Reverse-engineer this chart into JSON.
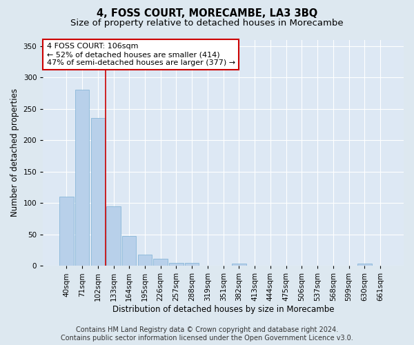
{
  "title": "4, FOSS COURT, MORECAMBE, LA3 3BQ",
  "subtitle": "Size of property relative to detached houses in Morecambe",
  "xlabel": "Distribution of detached houses by size in Morecambe",
  "ylabel": "Number of detached properties",
  "categories": [
    "40sqm",
    "71sqm",
    "102sqm",
    "133sqm",
    "164sqm",
    "195sqm",
    "226sqm",
    "257sqm",
    "288sqm",
    "319sqm",
    "351sqm",
    "382sqm",
    "413sqm",
    "444sqm",
    "475sqm",
    "506sqm",
    "537sqm",
    "568sqm",
    "599sqm",
    "630sqm",
    "661sqm"
  ],
  "values": [
    110,
    280,
    235,
    95,
    47,
    18,
    11,
    5,
    5,
    0,
    0,
    4,
    0,
    0,
    0,
    0,
    0,
    0,
    0,
    4,
    0
  ],
  "bar_color": "#b8d0ea",
  "bar_edge_color": "#7aafd4",
  "vline_x": 2.5,
  "vline_color": "#cc0000",
  "annotation_text": "4 FOSS COURT: 106sqm\n← 52% of detached houses are smaller (414)\n47% of semi-detached houses are larger (377) →",
  "annotation_box_color": "#ffffff",
  "annotation_box_edge": "#cc0000",
  "ylim": [
    0,
    360
  ],
  "yticks": [
    0,
    50,
    100,
    150,
    200,
    250,
    300,
    350
  ],
  "footer_line1": "Contains HM Land Registry data © Crown copyright and database right 2024.",
  "footer_line2": "Contains public sector information licensed under the Open Government Licence v3.0.",
  "background_color": "#dde8f0",
  "plot_bg_color": "#dde8f4",
  "grid_color": "#ffffff",
  "title_fontsize": 10.5,
  "subtitle_fontsize": 9.5,
  "axis_label_fontsize": 8.5,
  "tick_fontsize": 7.5,
  "footer_fontsize": 7,
  "annotation_fontsize": 8
}
